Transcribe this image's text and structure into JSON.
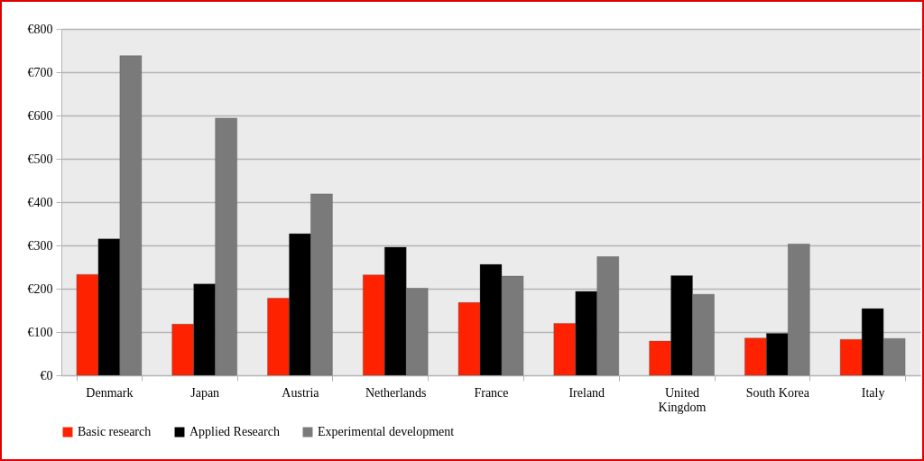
{
  "chart_data": {
    "type": "bar",
    "categories": [
      "Denmark",
      "Japan",
      "Austria",
      "Netherlands",
      "France",
      "Ireland",
      "United Kingdom",
      "South Korea",
      "Italy"
    ],
    "series": [
      {
        "name": "Basic research",
        "color": "#ff2200",
        "values": [
          233,
          118,
          178,
          232,
          168,
          120,
          79,
          86,
          83
        ]
      },
      {
        "name": "Applied Research",
        "color": "#000000",
        "values": [
          315,
          211,
          327,
          296,
          256,
          194,
          230,
          97,
          154
        ]
      },
      {
        "name": "Experimental development",
        "color": "#7a7a7a",
        "values": [
          738,
          594,
          419,
          201,
          229,
          274,
          187,
          303,
          85
        ]
      }
    ],
    "ylim": [
      0,
      800
    ],
    "yticks": [
      {
        "value": 0,
        "label": "€0"
      },
      {
        "value": 100,
        "label": "€100"
      },
      {
        "value": 200,
        "label": "€200"
      },
      {
        "value": 300,
        "label": "€300"
      },
      {
        "value": 400,
        "label": "€400"
      },
      {
        "value": 500,
        "label": "€500"
      },
      {
        "value": 600,
        "label": "€600"
      },
      {
        "value": 700,
        "label": "€700"
      },
      {
        "value": 800,
        "label": "€800"
      }
    ],
    "grid": "y",
    "legend": "bottom"
  }
}
